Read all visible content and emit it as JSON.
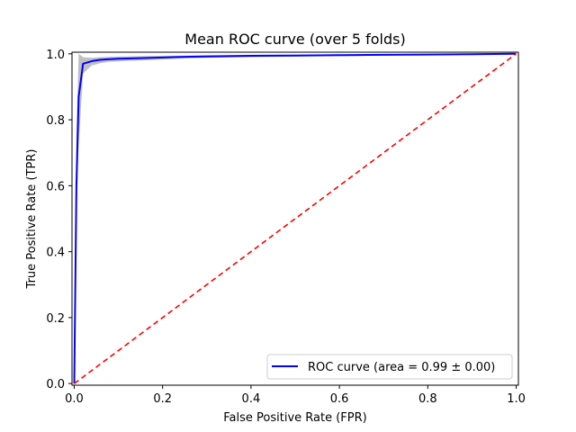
{
  "chart_data": {
    "type": "line",
    "title": "Mean ROC curve (over 5 folds)",
    "xlabel": "False Positive Rate (FPR)",
    "ylabel": "True Positive Rate (TPR)",
    "xlim": [
      -0.005,
      1.005
    ],
    "ylim": [
      -0.005,
      1.005
    ],
    "xticks": [
      "0.0",
      "0.2",
      "0.4",
      "0.6",
      "0.8",
      "1.0"
    ],
    "yticks": [
      "0.0",
      "0.2",
      "0.4",
      "0.6",
      "0.8",
      "1.0"
    ],
    "xtick_values": [
      0.0,
      0.2,
      0.4,
      0.6,
      0.8,
      1.0
    ],
    "ytick_values": [
      0.0,
      0.2,
      0.4,
      0.6,
      0.8,
      1.0
    ],
    "grid": false,
    "legend_position": "lower-right",
    "legend": [
      "ROC curve (area = 0.99 ± 0.00)"
    ],
    "series": [
      {
        "name": "ROC curve (area = 0.99 ± 0.00)",
        "color": "#0000ff",
        "style": "solid",
        "x": [
          0.0,
          0.005,
          0.01,
          0.02,
          0.04,
          0.06,
          0.08,
          0.1,
          0.15,
          0.2,
          0.25,
          0.3,
          0.4,
          0.5,
          0.6,
          0.7,
          0.8,
          0.9,
          1.0
        ],
        "y": [
          0.0,
          0.6,
          0.87,
          0.97,
          0.978,
          0.982,
          0.984,
          0.985,
          0.987,
          0.989,
          0.991,
          0.992,
          0.994,
          0.995,
          0.996,
          0.997,
          0.998,
          0.999,
          1.0
        ]
      },
      {
        "name": "",
        "color": "#ff0000",
        "style": "dashed",
        "x": [
          0.0,
          1.0
        ],
        "y": [
          0.0,
          1.0
        ]
      }
    ],
    "band": {
      "color": "#b0b0b0",
      "x": [
        0.0,
        0.005,
        0.01,
        0.02,
        0.04,
        0.06,
        0.08,
        0.1,
        0.15,
        0.2,
        0.25,
        0.3,
        0.4,
        0.5,
        0.6,
        0.7,
        0.8,
        0.9,
        1.0
      ],
      "upper": [
        0.0,
        0.75,
        1.0,
        0.99,
        0.988,
        0.99,
        0.991,
        0.992,
        0.993,
        0.994,
        0.995,
        0.996,
        0.997,
        0.998,
        0.998,
        0.999,
        0.999,
        1.0,
        1.0
      ],
      "lower": [
        0.0,
        0.5,
        0.72,
        0.94,
        0.965,
        0.972,
        0.976,
        0.977,
        0.98,
        0.983,
        0.986,
        0.988,
        0.99,
        0.992,
        0.993,
        0.995,
        0.997,
        0.998,
        1.0
      ]
    }
  }
}
